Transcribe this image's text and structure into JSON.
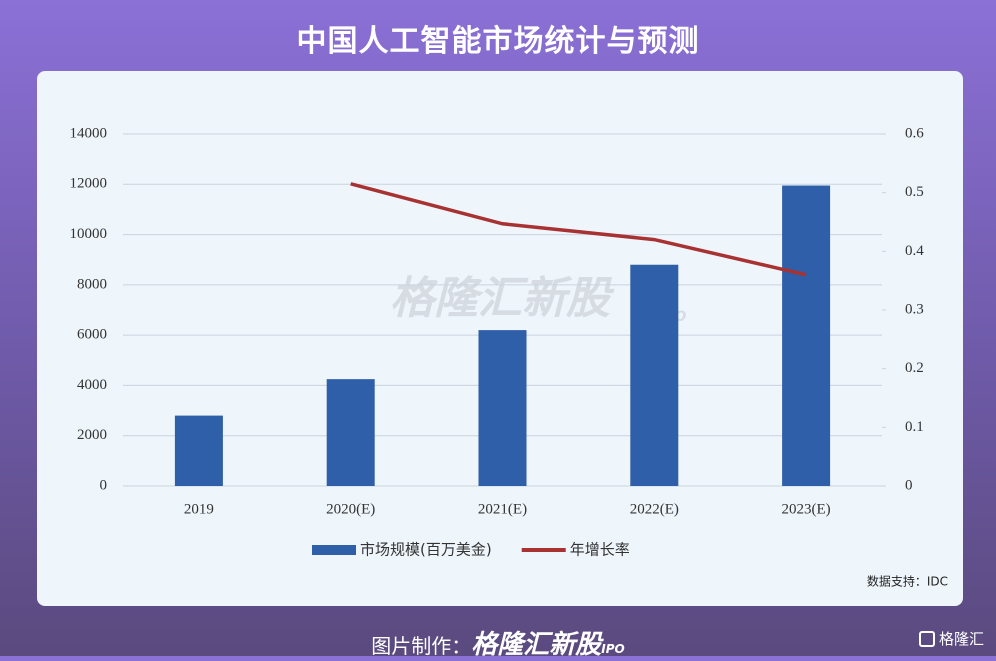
{
  "title": "中国人工智能市场统计与预测",
  "source": "数据支持：IDC",
  "watermark": "格隆汇新股",
  "watermark_sub": "IPO",
  "footer_label": "图片制作：",
  "footer_brand": "格隆汇新股",
  "footer_brand_sub": "IPO",
  "logo": "格隆汇",
  "chart_data": {
    "type": "bar",
    "categories": [
      "2019",
      "2020(E)",
      "2021(E)",
      "2022(E)",
      "2023(E)"
    ],
    "series": [
      {
        "name": "市场规模(百万美金)",
        "color": "#2f5fa8",
        "values": [
          2800,
          4250,
          6200,
          8800,
          11950
        ]
      },
      {
        "name": "年增长率",
        "color": "#a83232",
        "type": "line",
        "axis": "y2",
        "values": [
          null,
          0.515,
          0.447,
          0.42,
          0.36
        ]
      }
    ],
    "ylim": [
      0,
      14000
    ],
    "yticks": [
      0,
      2000,
      4000,
      6000,
      8000,
      10000,
      12000,
      14000
    ],
    "y2lim": [
      0,
      0.6
    ],
    "y2ticks": [
      0,
      0.1,
      0.2,
      0.3,
      0.4,
      0.5,
      0.6
    ],
    "grid": true
  }
}
